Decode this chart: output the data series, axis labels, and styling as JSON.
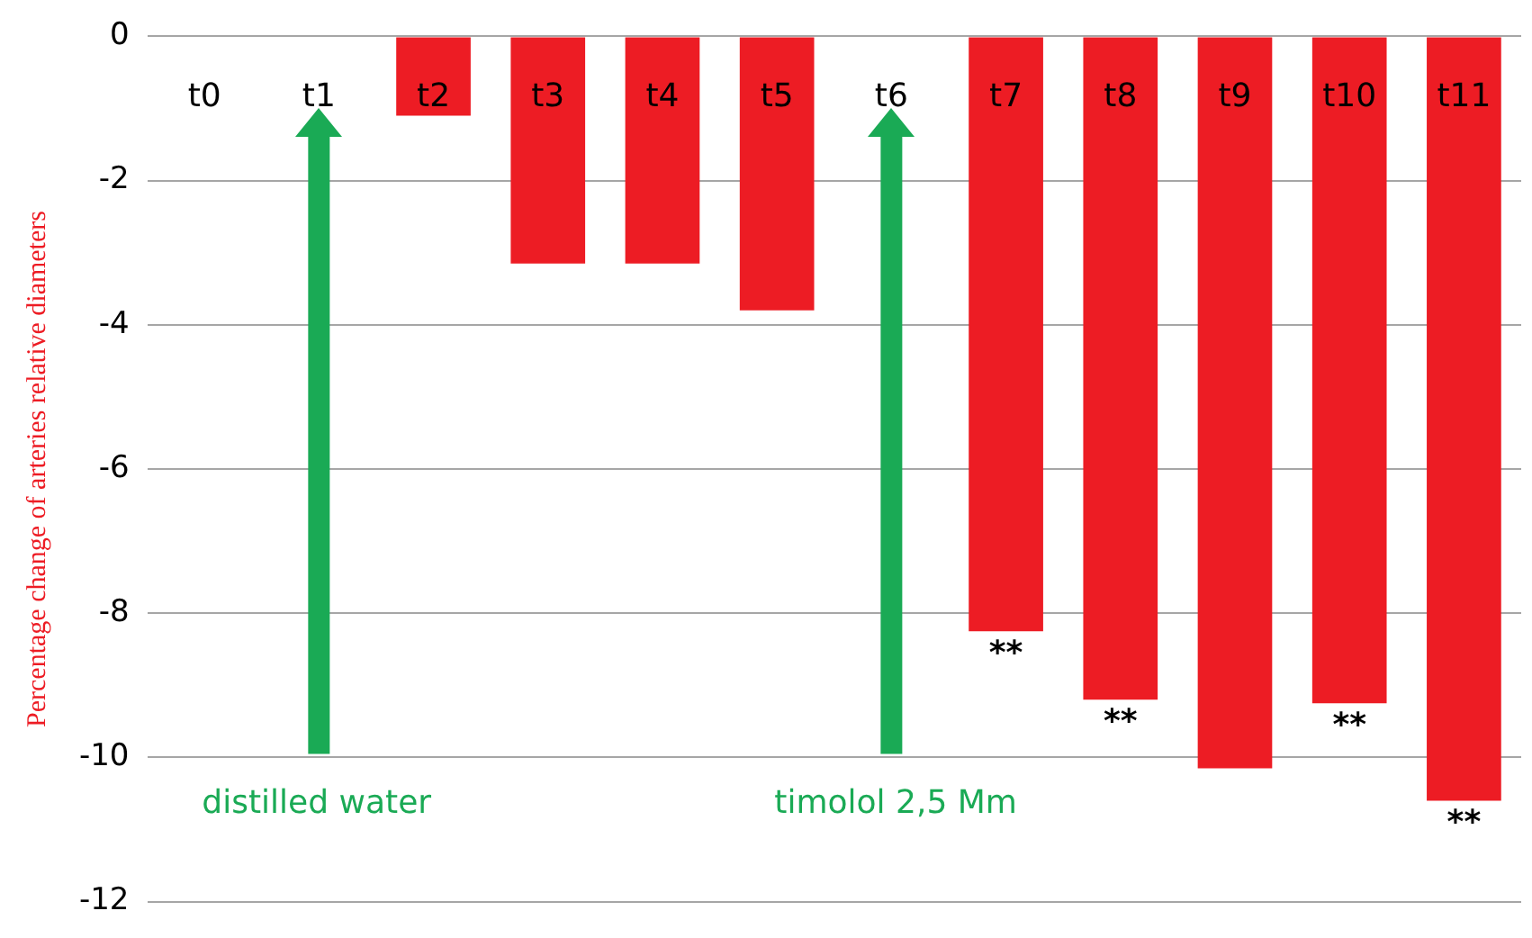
{
  "chart_data": {
    "type": "bar",
    "ylabel": "Percentage change of arteries relative diameters",
    "categories": [
      "t0",
      "t1",
      "t2",
      "t3",
      "t4",
      "t5",
      "t6",
      "t7",
      "t8",
      "t9",
      "t10",
      "t11"
    ],
    "values": [
      null,
      null,
      -1.1,
      -3.15,
      -3.15,
      -3.8,
      null,
      -8.25,
      -9.2,
      -10.15,
      -9.25,
      -10.6
    ],
    "color": "#ed1c24",
    "ylim": [
      -12,
      0
    ],
    "yticks": [
      0,
      -2,
      -4,
      -6,
      -8,
      -10,
      -12
    ],
    "grid": "y",
    "ref_lines": [
      {
        "axis": "x",
        "value": "t1",
        "label": "distilled water",
        "color": "#1aaa55"
      },
      {
        "axis": "x",
        "value": "t6",
        "label": "timolol 2,5 Mm",
        "color": "#1aaa55"
      }
    ],
    "annotations": [
      {
        "text": "**",
        "x": "t7",
        "y": -8.25
      },
      {
        "text": "**",
        "x": "t8",
        "y": -9.2
      },
      {
        "text": "**",
        "x": "t10",
        "y": -9.25
      },
      {
        "text": "**",
        "x": "t11",
        "y": -10.6
      }
    ]
  }
}
